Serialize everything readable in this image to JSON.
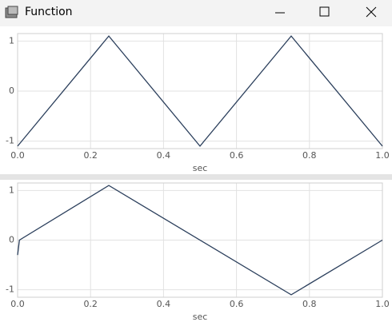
{
  "window": {
    "title": "Function"
  },
  "chart_data": [
    {
      "type": "line",
      "x_label": "sec",
      "x": [
        0,
        0.25,
        0.5,
        0.75,
        1
      ],
      "series": [
        {
          "color": "#2b3f5c",
          "values": [
            -1.1,
            1.1,
            -1.1,
            1.1,
            -1.1
          ]
        }
      ],
      "xlim": [
        0,
        1
      ],
      "xticks": [
        {
          "value": 0,
          "label": "0.0"
        },
        0.2,
        0.4,
        0.6,
        0.8,
        {
          "value": 1,
          "label": "1.0"
        }
      ],
      "ylim": [
        -1.15,
        1.15
      ],
      "yticks": [
        -1,
        0,
        1
      ],
      "grid": true
    },
    {
      "type": "line",
      "x_label": "sec",
      "x": [
        0,
        0.005,
        0.25,
        0.75,
        1
      ],
      "series": [
        {
          "color": "#2b3f5c",
          "values": [
            -0.3,
            0,
            1.1,
            -1.1,
            0
          ]
        }
      ],
      "xlim": [
        0,
        1
      ],
      "xticks": [
        {
          "value": 0,
          "label": "0.0"
        },
        0.2,
        0.4,
        0.6,
        0.8,
        {
          "value": 1,
          "label": "1.0"
        }
      ],
      "ylim": [
        -1.15,
        1.15
      ],
      "yticks": [
        -1,
        0,
        1
      ],
      "grid": true
    }
  ]
}
